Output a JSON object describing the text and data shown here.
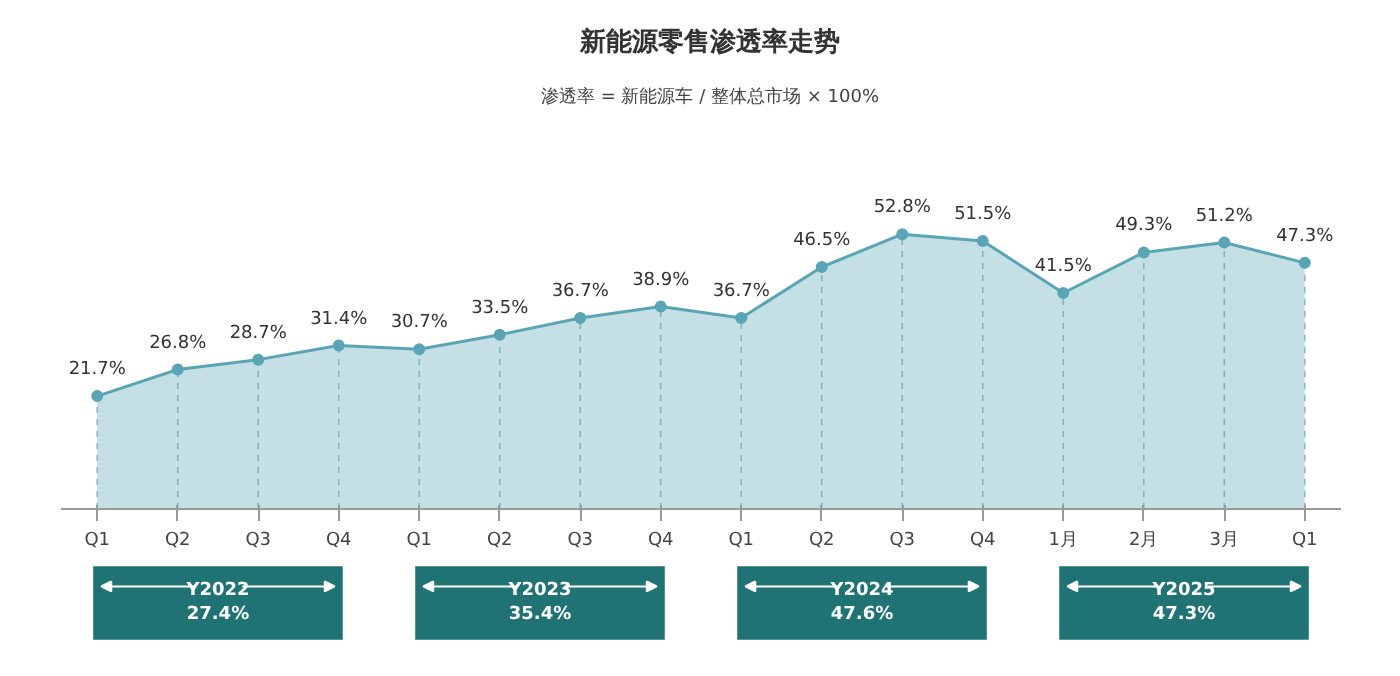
{
  "chart_data": {
    "type": "area",
    "title": "新能源零售渗透率走势",
    "categories": [
      "Q1",
      "Q2",
      "Q3",
      "Q4",
      "Q1",
      "Q2",
      "Q3",
      "Q4",
      "Q1",
      "Q2",
      "Q3",
      "Q4",
      "1月",
      "2月",
      "3月",
      "Q1"
    ],
    "values": [
      21.7,
      26.8,
      28.7,
      31.4,
      30.7,
      33.5,
      36.7,
      38.9,
      36.7,
      46.5,
      52.8,
      51.5,
      41.5,
      49.3,
      51.2,
      47.3
    ],
    "value_labels": [
      "21.7%",
      "26.8%",
      "28.7%",
      "31.4%",
      "30.7%",
      "33.5%",
      "36.7%",
      "38.9%",
      "36.7%",
      "46.5%",
      "52.8%",
      "51.5%",
      "41.5%",
      "49.3%",
      "51.2%",
      "47.3%"
    ],
    "color": "#5aa5b5",
    "marker": "circle",
    "tick_labels": "x",
    "grid": "x",
    "annotations": [
      "渗透率 = 新能源车 / 整体总市场 × 100%",
      "Y2022\n27.4%",
      "Y2023\n35.4%",
      "Y2024\n47.6%",
      "Y2025\n47.3%"
    ]
  }
}
